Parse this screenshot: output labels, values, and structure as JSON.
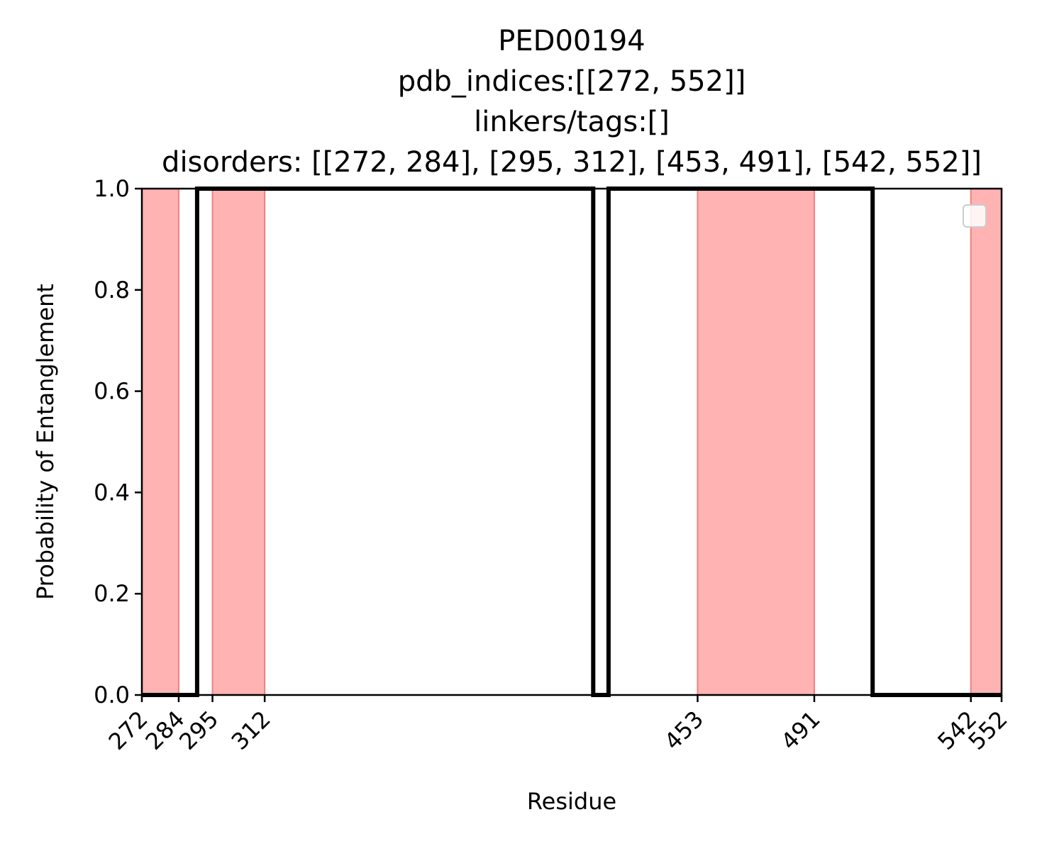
{
  "chart_data": {
    "type": "line",
    "title_lines": [
      "PED00194",
      "pdb_indices:[[272, 552]]",
      "linkers/tags:[]",
      "disorders: [[272, 284], [295, 312], [453, 491], [542, 552]]"
    ],
    "xlabel": "Residue",
    "ylabel": "Probability of Entanglement",
    "xlim": [
      272,
      552
    ],
    "ylim": [
      0,
      1
    ],
    "x_ticks": [
      272,
      284,
      295,
      312,
      453,
      491,
      542,
      552
    ],
    "x_tick_labels": [
      "272",
      "284",
      "295",
      "312",
      "453",
      "491",
      "542",
      "552"
    ],
    "y_ticks": [
      0,
      0.2,
      0.4,
      0.6,
      0.8,
      1.0
    ],
    "y_tick_labels": [
      "0.0",
      "0.2",
      "0.4",
      "0.6",
      "0.8",
      "1.0"
    ],
    "disordered_regions": [
      [
        272,
        284
      ],
      [
        295,
        312
      ],
      [
        453,
        491
      ],
      [
        542,
        552
      ]
    ],
    "series": [
      {
        "x": [
          272,
          290,
          290,
          419,
          419,
          424,
          424,
          510,
          510,
          552
        ],
        "y": [
          0,
          0,
          1,
          1,
          0,
          0,
          1,
          1,
          0,
          0
        ]
      }
    ],
    "grid": false,
    "legend": {
      "placement": "top-right",
      "entries": []
    },
    "colors": {
      "line": "#000000",
      "region_fill": "#ffb3b3",
      "region_edge": "#f08080"
    }
  }
}
